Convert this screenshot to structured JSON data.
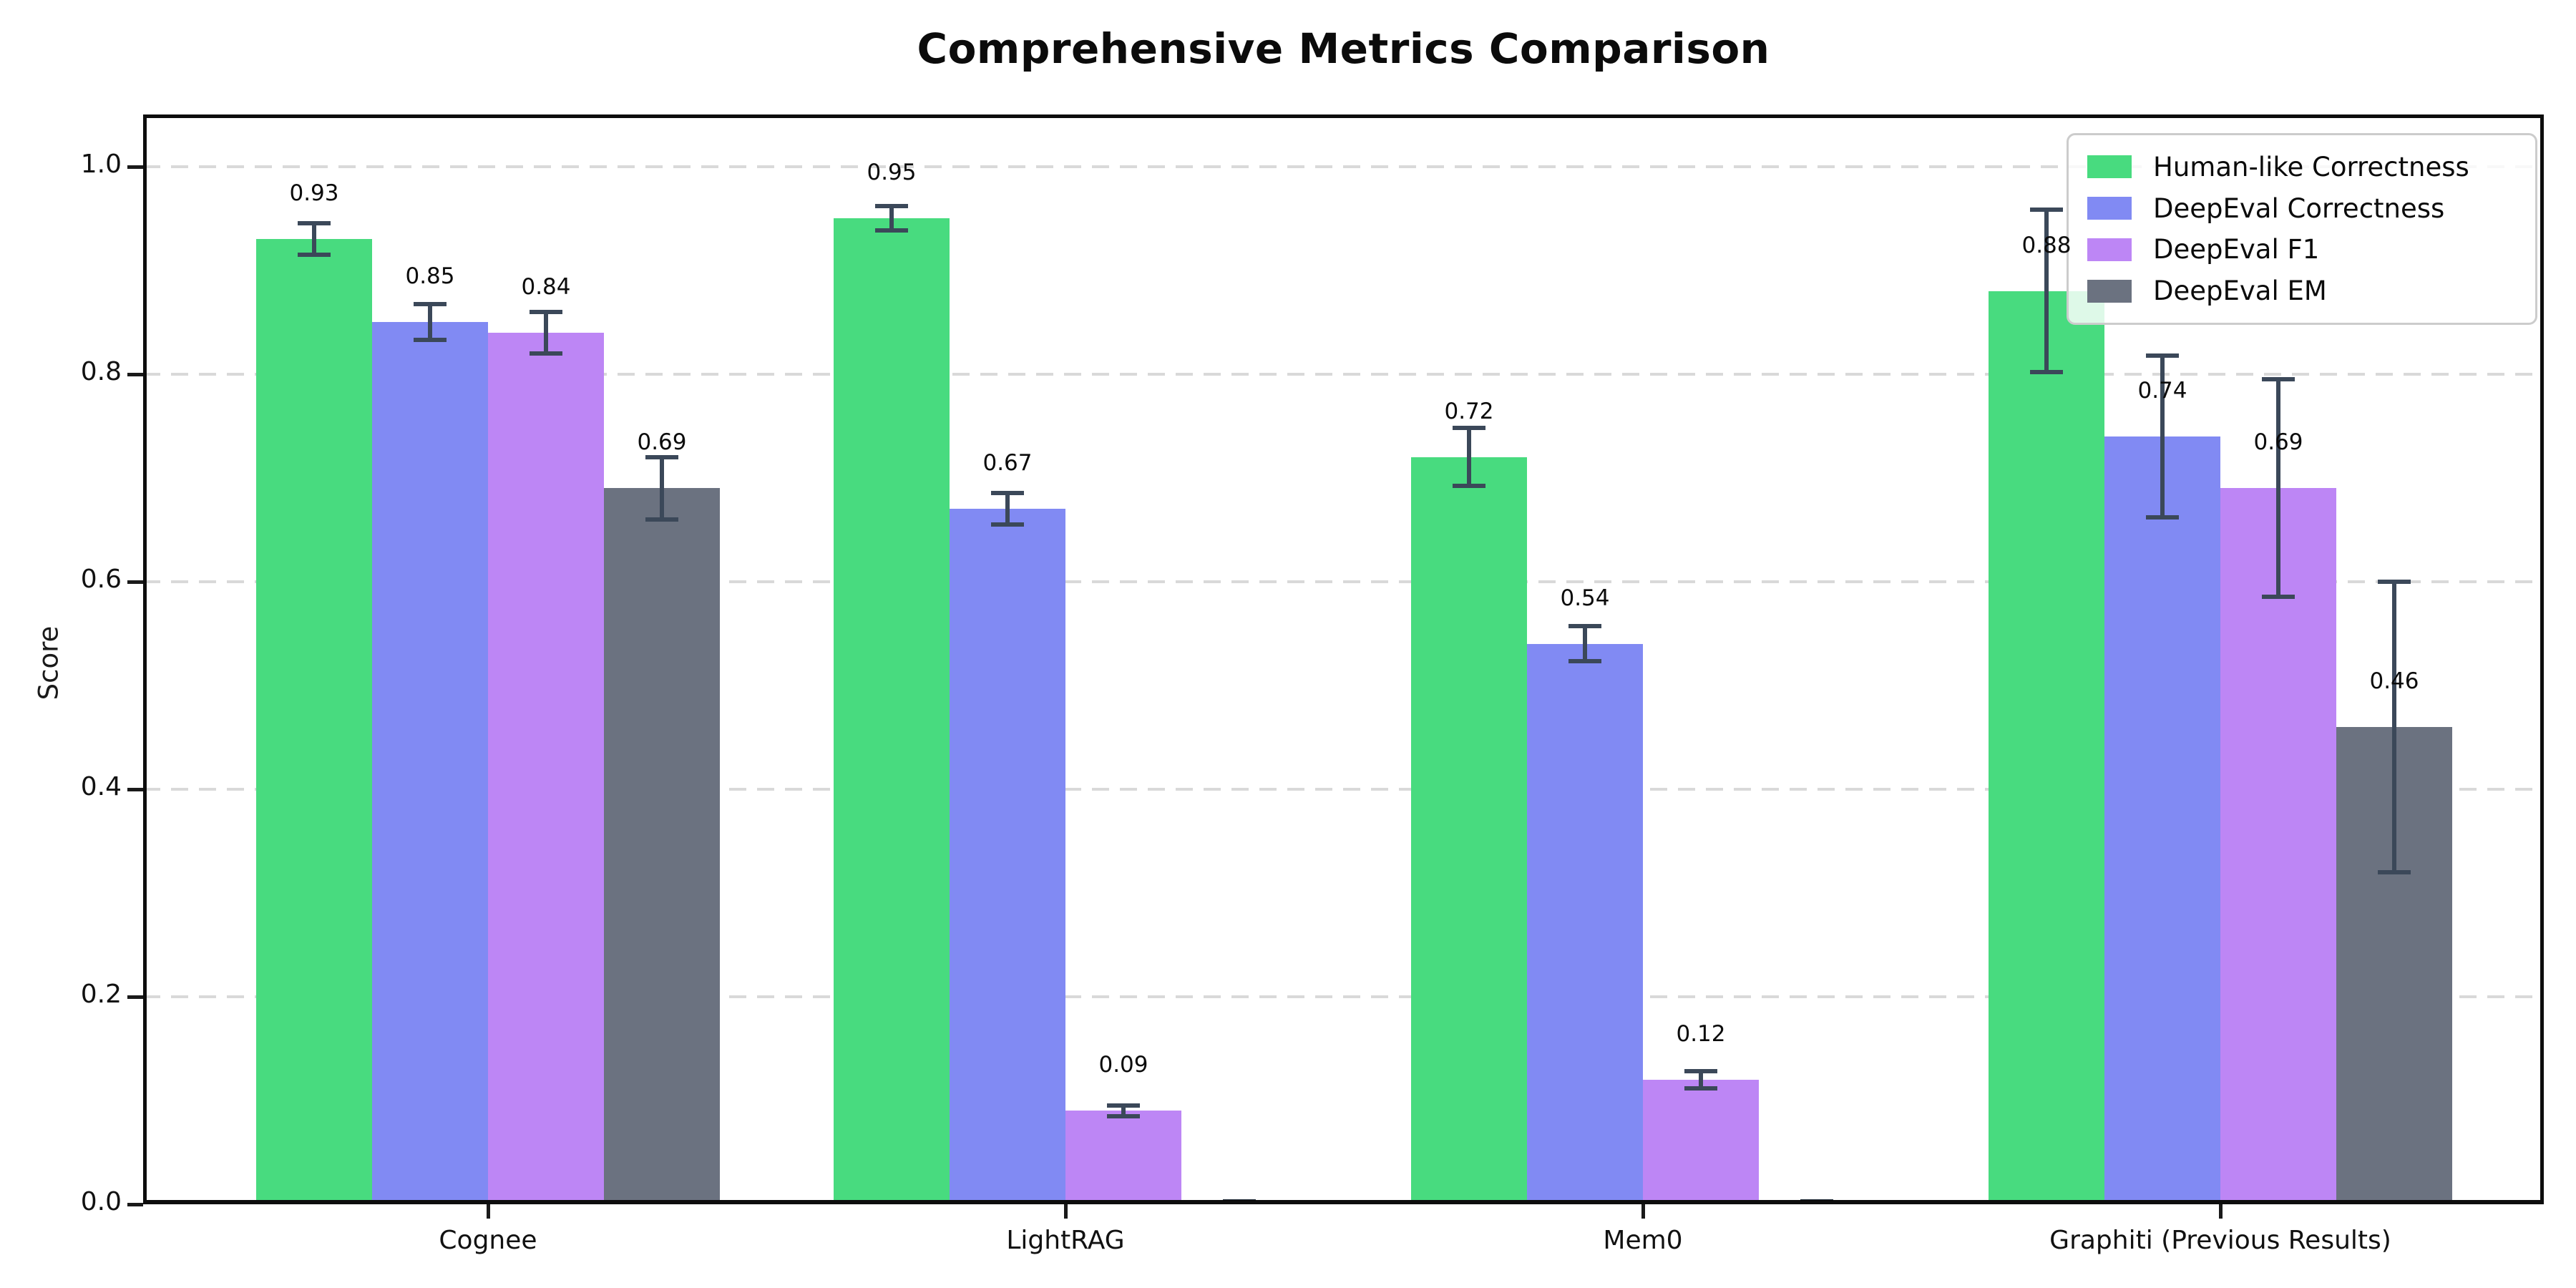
{
  "chart_data": {
    "type": "bar",
    "title": "Comprehensive Metrics Comparison",
    "ylabel": "Score",
    "xlabel": "",
    "categories": [
      "Cognee",
      "LightRAG",
      "Mem0",
      "Graphiti (Previous Results)"
    ],
    "series": [
      {
        "name": "Human-like Correctness",
        "color": "#48db7f",
        "values": [
          0.93,
          0.95,
          0.72,
          0.88
        ],
        "errors": [
          0.015,
          0.012,
          0.028,
          0.078
        ],
        "labels": [
          "0.93",
          "0.95",
          "0.72",
          "0.88"
        ]
      },
      {
        "name": "DeepEval Correctness",
        "color": "#818af3",
        "values": [
          0.85,
          0.67,
          0.54,
          0.74
        ],
        "errors": [
          0.017,
          0.015,
          0.017,
          0.078
        ],
        "labels": [
          "0.85",
          "0.67",
          "0.54",
          "0.74"
        ]
      },
      {
        "name": "DeepEval F1",
        "color": "#bd86f5",
        "values": [
          0.84,
          0.09,
          0.12,
          0.69
        ],
        "errors": [
          0.02,
          0.005,
          0.008,
          0.105
        ],
        "labels": [
          "0.84",
          "0.09",
          "0.12",
          "0.69"
        ]
      },
      {
        "name": "DeepEval EM",
        "color": "#6b7280",
        "values": [
          0.69,
          0.0,
          0.0,
          0.46
        ],
        "errors": [
          0.03,
          0.0,
          0.0,
          0.14
        ],
        "labels": [
          "0.69",
          "",
          "",
          "0.46"
        ]
      }
    ],
    "yticks": [
      "0.0",
      "0.2",
      "0.4",
      "0.6",
      "0.8",
      "1.0"
    ],
    "ytick_values": [
      0.0,
      0.2,
      0.4,
      0.6,
      0.8,
      1.0
    ],
    "ylim": [
      0,
      1.05
    ],
    "grid": "horizontal-dashed",
    "legend_position": "upper-right",
    "error_bar_color": "#3b4859",
    "zero_stub_color": "#222d3a"
  }
}
